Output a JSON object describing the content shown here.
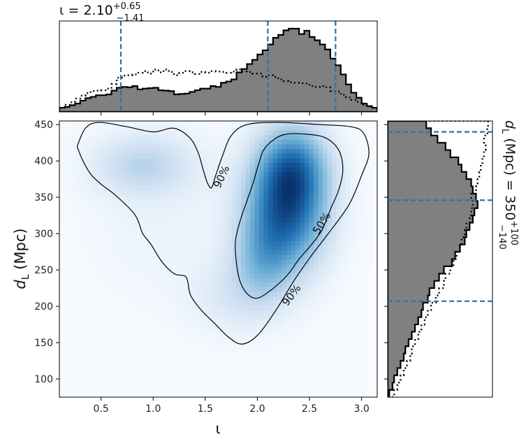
{
  "chart_data": [
    {
      "panel": "top-marginal",
      "type": "histogram",
      "title": {
        "param": "ι",
        "median": "2.10",
        "plus": "+0.65",
        "minus": "−1.41"
      },
      "xlim": [
        0.1,
        3.15
      ],
      "bin_edges_start": 0.1,
      "bin_width": 0.05,
      "series": [
        {
          "style": "filled-gray-solid",
          "values": [
            0.1,
            0.12,
            0.16,
            0.2,
            0.27,
            0.33,
            0.36,
            0.4,
            0.4,
            0.42,
            0.51,
            0.58,
            0.6,
            0.59,
            0.62,
            0.54,
            0.56,
            0.57,
            0.58,
            0.52,
            0.51,
            0.5,
            0.42,
            0.43,
            0.44,
            0.48,
            0.52,
            0.56,
            0.56,
            0.62,
            0.6,
            0.7,
            0.73,
            0.78,
            0.95,
            1.03,
            1.15,
            1.25,
            1.38,
            1.48,
            1.62,
            1.78,
            1.85,
            1.96,
            2.0,
            2.0,
            1.87,
            1.95,
            1.8,
            1.72,
            1.62,
            1.5,
            1.28,
            1.12,
            0.9,
            0.66,
            0.46,
            0.34,
            0.2,
            0.14,
            0.1
          ]
        },
        {
          "style": "dotted",
          "values": [
            0.1,
            0.17,
            0.23,
            0.32,
            0.39,
            0.45,
            0.5,
            0.51,
            0.52,
            0.56,
            0.67,
            0.82,
            0.87,
            0.88,
            0.9,
            0.94,
            0.98,
            0.92,
            1.02,
            0.95,
            1.02,
            0.96,
            0.88,
            0.94,
            0.98,
            0.95,
            0.91,
            0.96,
            0.94,
            0.98,
            0.97,
            0.96,
            0.94,
            0.97,
            1.02,
            0.97,
            0.96,
            0.92,
            0.92,
            0.84,
            0.88,
            0.84,
            0.78,
            0.74,
            0.71,
            0.7,
            0.69,
            0.68,
            0.62,
            0.6,
            0.62,
            0.59,
            0.5,
            0.49,
            0.41,
            0.35,
            0.29,
            0.24,
            0.17,
            0.13,
            0.1
          ]
        }
      ],
      "quantile_lines": [
        0.69,
        2.1,
        2.75
      ]
    },
    {
      "panel": "joint",
      "type": "heatmap",
      "xlabel": "ι",
      "ylabel": "d_L (Mpc)",
      "xlim": [
        0.1,
        3.15
      ],
      "ylim": [
        75,
        455
      ],
      "xticks": [
        0.5,
        1.0,
        1.5,
        2.0,
        2.5,
        3.0
      ],
      "xtick_labels": [
        "0.5",
        "1.0",
        "1.5",
        "2.0",
        "2.5",
        "3.0"
      ],
      "yticks": [
        100,
        150,
        200,
        250,
        300,
        350,
        400,
        450
      ],
      "ytick_labels": [
        "100",
        "150",
        "200",
        "250",
        "300",
        "350",
        "400",
        "450"
      ],
      "colormap": [
        "#f7fbff",
        "#c6dbef",
        "#6baed6",
        "#2171b5",
        "#08306b"
      ],
      "density_components": [
        {
          "x": 2.28,
          "y": 335,
          "sx": 0.26,
          "sy": 55,
          "w": 1.0
        },
        {
          "x": 2.35,
          "y": 395,
          "sx": 0.22,
          "sy": 38,
          "w": 0.55
        },
        {
          "x": 2.05,
          "y": 265,
          "sx": 0.2,
          "sy": 40,
          "w": 0.35
        },
        {
          "x": 0.9,
          "y": 395,
          "sx": 0.32,
          "sy": 28,
          "w": 0.28
        },
        {
          "x": 1.8,
          "y": 215,
          "sx": 0.3,
          "sy": 35,
          "w": 0.15
        },
        {
          "x": 1.1,
          "y": 330,
          "sx": 0.5,
          "sy": 80,
          "w": 0.06
        }
      ],
      "contours": [
        {
          "label": "90%",
          "points": [
            [
              0.27,
              420
            ],
            [
              0.35,
              445
            ],
            [
              0.48,
              453
            ],
            [
              0.75,
              447
            ],
            [
              1.0,
              440
            ],
            [
              1.2,
              445
            ],
            [
              1.35,
              432
            ],
            [
              1.43,
              412
            ],
            [
              1.48,
              388
            ],
            [
              1.52,
              370
            ],
            [
              1.56,
              363
            ],
            [
              1.6,
              380
            ],
            [
              1.66,
              405
            ],
            [
              1.75,
              435
            ],
            [
              1.9,
              450
            ],
            [
              2.2,
              453
            ],
            [
              2.6,
              450
            ],
            [
              2.9,
              447
            ],
            [
              3.02,
              438
            ],
            [
              3.07,
              410
            ],
            [
              3.0,
              380
            ],
            [
              2.88,
              340
            ],
            [
              2.68,
              300
            ],
            [
              2.52,
              270
            ],
            [
              2.35,
              235
            ],
            [
              2.18,
              195
            ],
            [
              2.0,
              160
            ],
            [
              1.85,
              148
            ],
            [
              1.72,
              158
            ],
            [
              1.6,
              175
            ],
            [
              1.46,
              195
            ],
            [
              1.36,
              215
            ],
            [
              1.33,
              235
            ],
            [
              1.3,
              242
            ],
            [
              1.2,
              245
            ],
            [
              1.08,
              262
            ],
            [
              0.98,
              285
            ],
            [
              0.9,
              300
            ],
            [
              0.86,
              316
            ],
            [
              0.82,
              327
            ],
            [
              0.75,
              338
            ],
            [
              0.62,
              355
            ],
            [
              0.5,
              368
            ],
            [
              0.4,
              382
            ],
            [
              0.32,
              402
            ],
            [
              0.27,
              420
            ]
          ]
        },
        {
          "label": "50%",
          "points": [
            [
              2.05,
              413
            ],
            [
              2.12,
              425
            ],
            [
              2.25,
              436
            ],
            [
              2.45,
              437
            ],
            [
              2.65,
              432
            ],
            [
              2.78,
              415
            ],
            [
              2.82,
              388
            ],
            [
              2.78,
              360
            ],
            [
              2.7,
              333
            ],
            [
              2.62,
              305
            ],
            [
              2.52,
              285
            ],
            [
              2.4,
              265
            ],
            [
              2.3,
              245
            ],
            [
              2.18,
              228
            ],
            [
              2.02,
              212
            ],
            [
              1.92,
              215
            ],
            [
              1.84,
              232
            ],
            [
              1.8,
              258
            ],
            [
              1.79,
              290
            ],
            [
              1.84,
              320
            ],
            [
              1.9,
              345
            ],
            [
              1.96,
              370
            ],
            [
              2.0,
              390
            ],
            [
              2.05,
              413
            ]
          ]
        }
      ],
      "contour_labels": [
        {
          "text": "90%",
          "x": 1.66,
          "y": 378,
          "angle": -65
        },
        {
          "text": "50%",
          "x": 2.62,
          "y": 314,
          "angle": -58
        },
        {
          "text": "90%",
          "x": 2.33,
          "y": 215,
          "angle": -53
        }
      ]
    },
    {
      "panel": "right-marginal",
      "type": "histogram",
      "orientation": "horizontal",
      "title": {
        "param": "d_L (Mpc)",
        "median": "350",
        "plus": "+100",
        "minus": "−140"
      },
      "ylim": [
        75,
        455
      ],
      "bin_edges_start": 75,
      "bin_width": 10,
      "series": [
        {
          "style": "filled-gray-solid",
          "values": [
            0.02,
            0.06,
            0.08,
            0.12,
            0.16,
            0.2,
            0.22,
            0.26,
            0.3,
            0.34,
            0.38,
            0.42,
            0.44,
            0.5,
            0.52,
            0.58,
            0.64,
            0.7,
            0.8,
            0.84,
            0.9,
            0.96,
            0.98,
            1.02,
            1.06,
            1.08,
            1.12,
            1.1,
            1.06,
            1.04,
            0.98,
            0.92,
            0.88,
            0.78,
            0.72,
            0.62,
            0.54,
            0.48
          ]
        },
        {
          "style": "dotted",
          "values": [
            0.08,
            0.12,
            0.16,
            0.2,
            0.24,
            0.28,
            0.3,
            0.34,
            0.38,
            0.42,
            0.46,
            0.5,
            0.54,
            0.6,
            0.64,
            0.7,
            0.72,
            0.78,
            0.82,
            0.86,
            0.9,
            0.92,
            0.96,
            0.98,
            1.02,
            1.04,
            1.06,
            1.04,
            1.1,
            1.12,
            1.14,
            1.16,
            1.18,
            1.2,
            1.22,
            1.2,
            1.24,
            1.25
          ]
        }
      ],
      "quantile_lines": [
        207,
        346,
        440
      ]
    }
  ]
}
